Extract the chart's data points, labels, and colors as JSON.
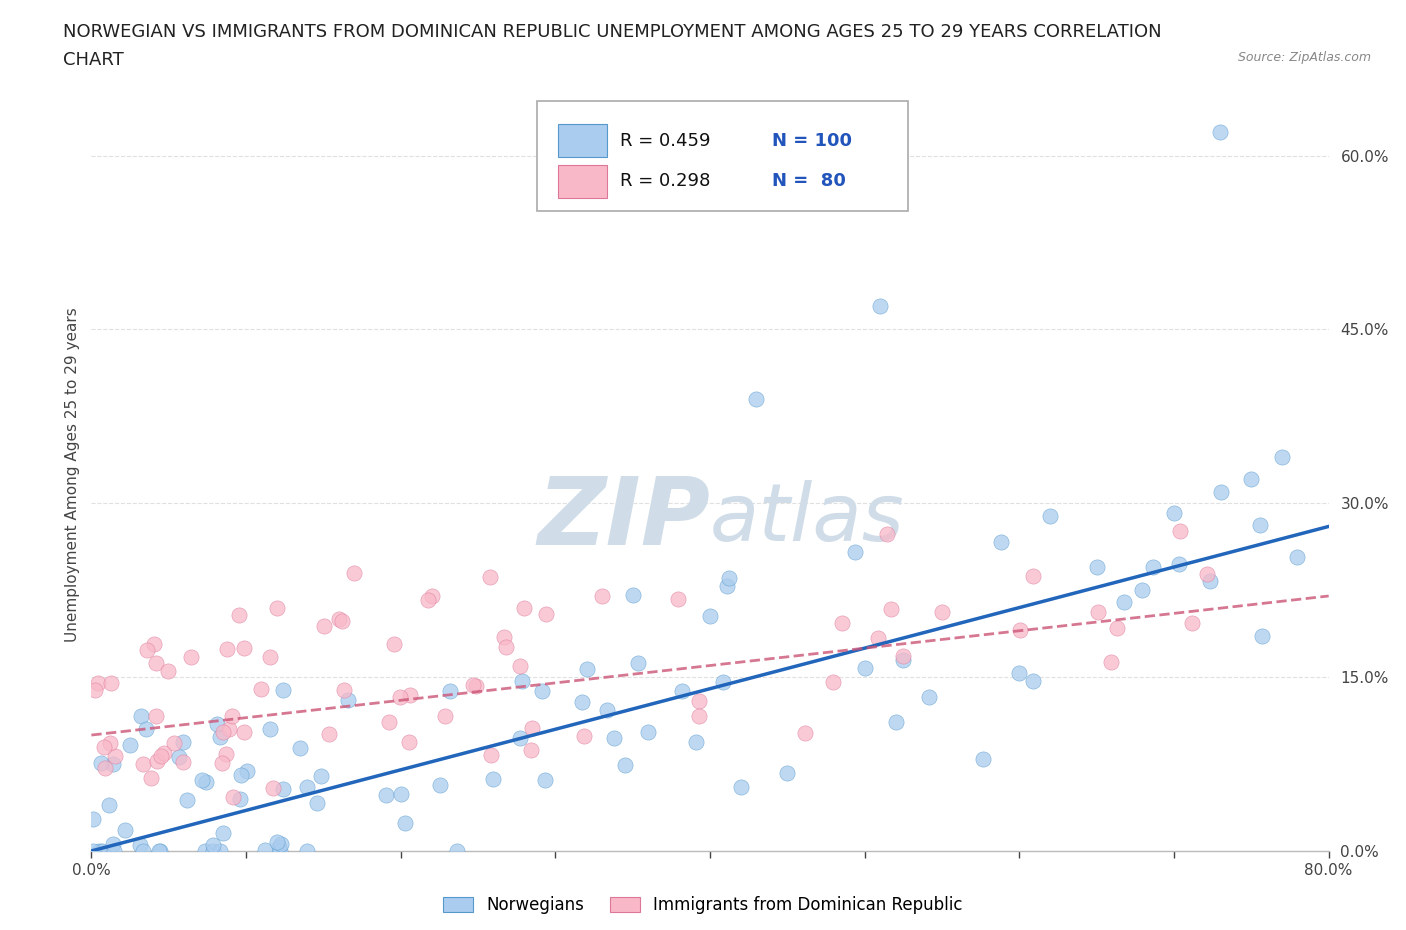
{
  "title_line1": "NORWEGIAN VS IMMIGRANTS FROM DOMINICAN REPUBLIC UNEMPLOYMENT AMONG AGES 25 TO 29 YEARS CORRELATION",
  "title_line2": "CHART",
  "source_text": "Source: ZipAtlas.com",
  "ylabel": "Unemployment Among Ages 25 to 29 years",
  "xlim": [
    0.0,
    0.8
  ],
  "ylim": [
    0.0,
    0.65
  ],
  "xticks": [
    0.0,
    0.1,
    0.2,
    0.3,
    0.4,
    0.5,
    0.6,
    0.7,
    0.8
  ],
  "ytick_positions": [
    0.0,
    0.15,
    0.3,
    0.45,
    0.6
  ],
  "norwegian_R": 0.459,
  "norwegian_N": 100,
  "immigrant_R": 0.298,
  "immigrant_N": 80,
  "norwegian_color": "#aaccee",
  "norwegian_edge_color": "#5599cc",
  "norwegian_line_color": "#2266bb",
  "immigrant_color": "#f8b8c8",
  "immigrant_edge_color": "#dd7799",
  "immigrant_line_color": "#cc5577",
  "watermark_color": "#d0dde8",
  "legend_label_norwegian": "Norwegians",
  "legend_label_immigrant": "Immigrants from Dominican Republic",
  "background_color": "#ffffff",
  "grid_color": "#cccccc",
  "title_fontsize": 13,
  "axis_label_fontsize": 11,
  "tick_fontsize": 11,
  "nor_line_start_y": 0.0,
  "nor_line_end_y": 0.28,
  "imm_line_start_y": 0.1,
  "imm_line_end_y": 0.22
}
